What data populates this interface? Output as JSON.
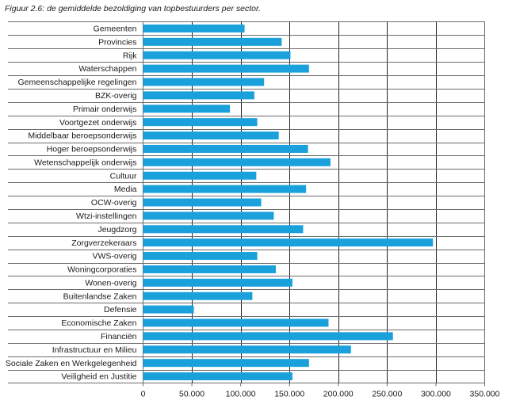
{
  "figure_title": "Figuur 2.6: de gemiddelde bezoldiging van topbestuurders per sector.",
  "chart_data": {
    "type": "bar",
    "orientation": "horizontal",
    "title": "Figuur 2.6: de gemiddelde bezoldiging van topbestuurders per sector.",
    "xlabel": "",
    "ylabel": "",
    "xlim": [
      0,
      350000
    ],
    "x_ticks": [
      0,
      50000,
      100000,
      150000,
      200000,
      250000,
      300000,
      350000
    ],
    "x_tick_labels": [
      "0",
      "50.000",
      "100.000",
      "150.000",
      "200.000",
      "250.000",
      "300.000",
      "350.000"
    ],
    "grid": "vertical",
    "bar_color": "#1aa1dc",
    "categories": [
      "Gemeenten",
      "Provincies",
      "Rijk",
      "Waterschappen",
      "Gemeenschappelijke regelingen",
      "BZK-overig",
      "Primair onderwijs",
      "Voortgezet onderwijs",
      "Middelbaar beroepsonderwijs",
      "Hoger beroepsonderwijs",
      "Wetenschappelijk onderwijs",
      "Cultuur",
      "Media",
      "OCW-overig",
      "Wtzi-instellingen",
      "Jeugdzorg",
      "Zorgverzekeraars",
      "VWS-overig",
      "Woningcorporaties",
      "Wonen-overig",
      "Buitenlandse Zaken",
      "Defensie",
      "Economische Zaken",
      "Financiën",
      "Infrastructuur en Milieu",
      "Sociale Zaken en Werkgelegenheid",
      "Veiligheid en Justitie"
    ],
    "values": [
      104000,
      142000,
      151000,
      170000,
      124000,
      114000,
      89000,
      117000,
      139000,
      169000,
      192000,
      116000,
      167000,
      121000,
      134000,
      164000,
      297000,
      117000,
      136000,
      153000,
      112000,
      52000,
      190000,
      256000,
      213000,
      170000,
      153000
    ]
  }
}
